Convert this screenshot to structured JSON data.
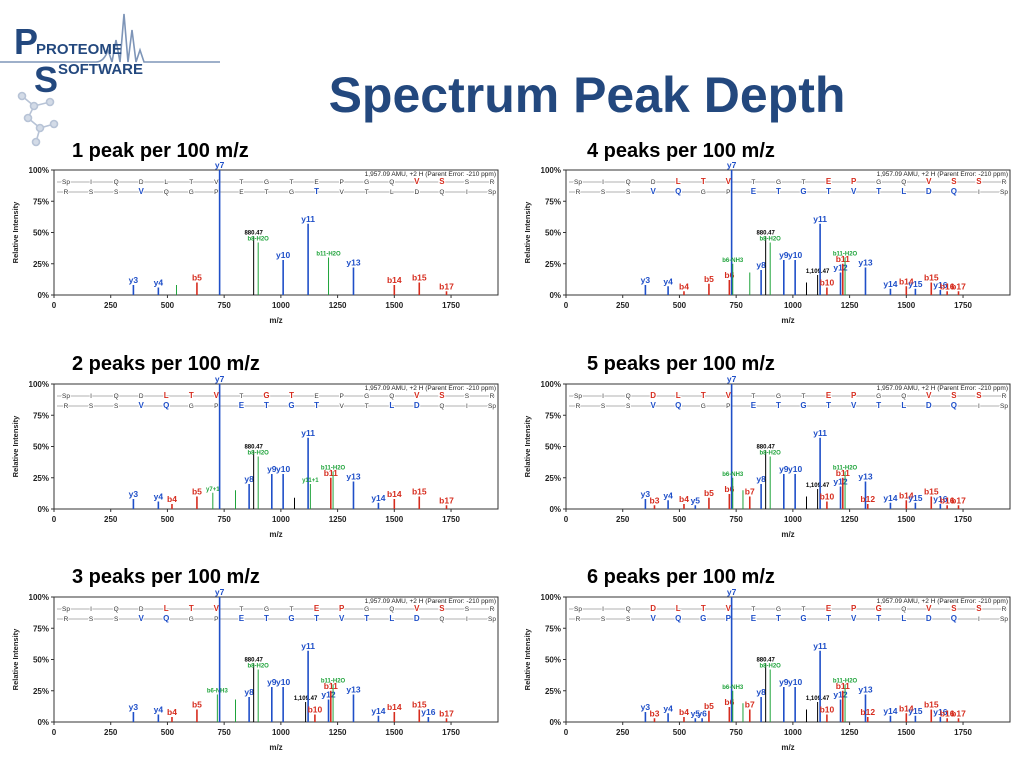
{
  "slide": {
    "title": "Spectrum Peak Depth"
  },
  "logo": {
    "line1": "PROTEOME",
    "line2": "SOFTWARE"
  },
  "colors": {
    "title": "#23487e",
    "y_ion": "#1f4fc8",
    "b_ion": "#d62c1e",
    "neutral": "#1ea33a",
    "noise": "#000000",
    "frame": "#333333"
  },
  "common": {
    "ylabel": "Relative Intensity",
    "xlabel": "m/z",
    "header": "1,957.09 AMU, +2 H (Parent Error: -210 ppm)",
    "y_ticks": [
      "0%",
      "25%",
      "50%",
      "75%",
      "100%"
    ],
    "x_ticks": [
      0,
      250,
      500,
      750,
      1000,
      1250,
      1500,
      1750
    ],
    "xlim": [
      0,
      1957
    ],
    "ylim": [
      0,
      100
    ],
    "seq_top": [
      "Sp",
      "I",
      "Q",
      "D",
      "L",
      "T",
      "V",
      "T",
      "G",
      "T",
      "E",
      "P",
      "G",
      "Q",
      "V",
      "S",
      "S",
      "R"
    ],
    "seq_bottom": [
      "R",
      "S",
      "S",
      "V",
      "Q",
      "G",
      "P",
      "E",
      "T",
      "G",
      "T",
      "V",
      "T",
      "L",
      "D",
      "Q",
      "I",
      "Sp"
    ]
  },
  "chart_data": [
    {
      "type": "bar",
      "title": "1 peak per 100 m/z",
      "top_hl": [
        14,
        15
      ],
      "bottom_hl": [
        3,
        10
      ],
      "peaks": [
        {
          "x": 350,
          "y": 8,
          "label": "y3",
          "c": "y"
        },
        {
          "x": 460,
          "y": 6,
          "label": "y4",
          "c": "y"
        },
        {
          "x": 630,
          "y": 10,
          "label": "b5",
          "c": "b"
        },
        {
          "x": 730,
          "y": 100,
          "label": "y7",
          "c": "y"
        },
        {
          "x": 880,
          "y": 47,
          "label": "880.47",
          "c": "n"
        },
        {
          "x": 900,
          "y": 42,
          "label": "b8-H2O",
          "c": "g"
        },
        {
          "x": 1010,
          "y": 28,
          "label": "y10",
          "c": "y"
        },
        {
          "x": 1120,
          "y": 57,
          "label": "y11",
          "c": "y"
        },
        {
          "x": 1210,
          "y": 30,
          "label": "b11-H2O",
          "c": "g"
        },
        {
          "x": 1320,
          "y": 22,
          "label": "y13",
          "c": "y"
        },
        {
          "x": 1500,
          "y": 8,
          "label": "b14",
          "c": "b"
        },
        {
          "x": 1610,
          "y": 10,
          "label": "b15",
          "c": "b"
        },
        {
          "x": 1730,
          "y": 3,
          "label": "b17",
          "c": "b"
        },
        {
          "x": 540,
          "y": 8,
          "label": "",
          "c": "g"
        }
      ]
    },
    {
      "type": "bar",
      "title": "4 peaks per 100 m/z",
      "top_hl": [
        4,
        5,
        6,
        10,
        11,
        14,
        15,
        16
      ],
      "bottom_hl": [
        3,
        4,
        7,
        8,
        9,
        10,
        11,
        12,
        13,
        14,
        15
      ],
      "peaks": [
        {
          "x": 350,
          "y": 8,
          "label": "y3",
          "c": "y"
        },
        {
          "x": 450,
          "y": 7,
          "label": "y4",
          "c": "y"
        },
        {
          "x": 520,
          "y": 3,
          "label": "b4",
          "c": "b"
        },
        {
          "x": 630,
          "y": 9,
          "label": "b5",
          "c": "b"
        },
        {
          "x": 720,
          "y": 12,
          "label": "b6",
          "c": "b"
        },
        {
          "x": 730,
          "y": 100,
          "label": "y7",
          "c": "y"
        },
        {
          "x": 735,
          "y": 25,
          "label": "b6-NH3",
          "c": "g"
        },
        {
          "x": 860,
          "y": 20,
          "label": "y8",
          "c": "y"
        },
        {
          "x": 880,
          "y": 47,
          "label": "880.47",
          "c": "n"
        },
        {
          "x": 900,
          "y": 42,
          "label": "b8-H2O",
          "c": "g"
        },
        {
          "x": 960,
          "y": 28,
          "label": "y9",
          "c": "y"
        },
        {
          "x": 1010,
          "y": 28,
          "label": "y10",
          "c": "y"
        },
        {
          "x": 1109,
          "y": 16,
          "label": "1,109.47",
          "c": "n"
        },
        {
          "x": 1120,
          "y": 57,
          "label": "y11",
          "c": "y"
        },
        {
          "x": 1150,
          "y": 6,
          "label": "b10",
          "c": "b"
        },
        {
          "x": 1210,
          "y": 18,
          "label": "y12",
          "c": "y"
        },
        {
          "x": 1220,
          "y": 25,
          "label": "b11",
          "c": "b"
        },
        {
          "x": 1230,
          "y": 30,
          "label": "b11-H2O",
          "c": "g"
        },
        {
          "x": 1320,
          "y": 22,
          "label": "y13",
          "c": "y"
        },
        {
          "x": 1430,
          "y": 5,
          "label": "y14",
          "c": "y"
        },
        {
          "x": 1500,
          "y": 7,
          "label": "b14",
          "c": "b"
        },
        {
          "x": 1540,
          "y": 5,
          "label": "y15",
          "c": "y"
        },
        {
          "x": 1610,
          "y": 10,
          "label": "b15",
          "c": "b"
        },
        {
          "x": 1650,
          "y": 4,
          "label": "y16",
          "c": "y"
        },
        {
          "x": 1680,
          "y": 3,
          "label": "b16",
          "c": "b"
        },
        {
          "x": 1730,
          "y": 3,
          "label": "b17",
          "c": "b"
        },
        {
          "x": 810,
          "y": 18,
          "label": "",
          "c": "g"
        },
        {
          "x": 1060,
          "y": 10,
          "label": "",
          "c": "n"
        }
      ]
    },
    {
      "type": "bar",
      "title": "2 peaks per 100 m/z",
      "top_hl": [
        4,
        5,
        6,
        8,
        9,
        14,
        15
      ],
      "bottom_hl": [
        3,
        4,
        7,
        8,
        9,
        10,
        13,
        14
      ],
      "peaks": [
        {
          "x": 350,
          "y": 8,
          "label": "y3",
          "c": "y"
        },
        {
          "x": 460,
          "y": 6,
          "label": "y4",
          "c": "y"
        },
        {
          "x": 520,
          "y": 4,
          "label": "b4",
          "c": "b"
        },
        {
          "x": 630,
          "y": 10,
          "label": "b5",
          "c": "b"
        },
        {
          "x": 700,
          "y": 13,
          "label": "y7+1",
          "c": "g"
        },
        {
          "x": 730,
          "y": 100,
          "label": "y7",
          "c": "y"
        },
        {
          "x": 860,
          "y": 20,
          "label": "y8",
          "c": "y"
        },
        {
          "x": 880,
          "y": 47,
          "label": "880.47",
          "c": "n"
        },
        {
          "x": 900,
          "y": 42,
          "label": "b8-H2O",
          "c": "g"
        },
        {
          "x": 960,
          "y": 28,
          "label": "y9",
          "c": "y"
        },
        {
          "x": 1010,
          "y": 28,
          "label": "y10",
          "c": "y"
        },
        {
          "x": 1120,
          "y": 57,
          "label": "y11",
          "c": "y"
        },
        {
          "x": 1130,
          "y": 20,
          "label": "y11+1",
          "c": "g"
        },
        {
          "x": 1220,
          "y": 25,
          "label": "b11",
          "c": "b"
        },
        {
          "x": 1230,
          "y": 30,
          "label": "b11-H2O",
          "c": "g"
        },
        {
          "x": 1320,
          "y": 22,
          "label": "y13",
          "c": "y"
        },
        {
          "x": 1430,
          "y": 5,
          "label": "y14",
          "c": "y"
        },
        {
          "x": 1500,
          "y": 8,
          "label": "b14",
          "c": "b"
        },
        {
          "x": 1610,
          "y": 10,
          "label": "b15",
          "c": "b"
        },
        {
          "x": 1730,
          "y": 3,
          "label": "b17",
          "c": "b"
        },
        {
          "x": 800,
          "y": 15,
          "label": "",
          "c": "g"
        },
        {
          "x": 1060,
          "y": 9,
          "label": "",
          "c": "n"
        }
      ]
    },
    {
      "type": "bar",
      "title": "5 peaks per 100 m/z",
      "top_hl": [
        3,
        4,
        5,
        6,
        10,
        11,
        14,
        15,
        16
      ],
      "bottom_hl": [
        3,
        4,
        7,
        8,
        9,
        10,
        11,
        12,
        13,
        14,
        15
      ],
      "peaks": [
        {
          "x": 350,
          "y": 8,
          "label": "y3",
          "c": "y"
        },
        {
          "x": 390,
          "y": 3,
          "label": "b3",
          "c": "b"
        },
        {
          "x": 450,
          "y": 7,
          "label": "y4",
          "c": "y"
        },
        {
          "x": 520,
          "y": 4,
          "label": "b4",
          "c": "b"
        },
        {
          "x": 570,
          "y": 3,
          "label": "y5",
          "c": "y"
        },
        {
          "x": 630,
          "y": 9,
          "label": "b5",
          "c": "b"
        },
        {
          "x": 720,
          "y": 12,
          "label": "b6",
          "c": "b"
        },
        {
          "x": 730,
          "y": 100,
          "label": "y7",
          "c": "y"
        },
        {
          "x": 735,
          "y": 25,
          "label": "b6-NH3",
          "c": "g"
        },
        {
          "x": 810,
          "y": 10,
          "label": "b7",
          "c": "b"
        },
        {
          "x": 860,
          "y": 20,
          "label": "y8",
          "c": "y"
        },
        {
          "x": 880,
          "y": 47,
          "label": "880.47",
          "c": "n"
        },
        {
          "x": 900,
          "y": 42,
          "label": "b8-H2O",
          "c": "g"
        },
        {
          "x": 960,
          "y": 28,
          "label": "y9",
          "c": "y"
        },
        {
          "x": 1010,
          "y": 28,
          "label": "y10",
          "c": "y"
        },
        {
          "x": 1109,
          "y": 16,
          "label": "1,109.47",
          "c": "n"
        },
        {
          "x": 1120,
          "y": 57,
          "label": "y11",
          "c": "y"
        },
        {
          "x": 1150,
          "y": 6,
          "label": "b10",
          "c": "b"
        },
        {
          "x": 1210,
          "y": 18,
          "label": "y12",
          "c": "y"
        },
        {
          "x": 1220,
          "y": 25,
          "label": "b11",
          "c": "b"
        },
        {
          "x": 1230,
          "y": 30,
          "label": "b11-H2O",
          "c": "g"
        },
        {
          "x": 1320,
          "y": 22,
          "label": "y13",
          "c": "y"
        },
        {
          "x": 1330,
          "y": 4,
          "label": "b12",
          "c": "b"
        },
        {
          "x": 1430,
          "y": 5,
          "label": "y14",
          "c": "y"
        },
        {
          "x": 1500,
          "y": 7,
          "label": "b14",
          "c": "b"
        },
        {
          "x": 1540,
          "y": 5,
          "label": "y15",
          "c": "y"
        },
        {
          "x": 1610,
          "y": 10,
          "label": "b15",
          "c": "b"
        },
        {
          "x": 1650,
          "y": 4,
          "label": "y16",
          "c": "y"
        },
        {
          "x": 1680,
          "y": 3,
          "label": "b16",
          "c": "b"
        },
        {
          "x": 1730,
          "y": 3,
          "label": "b17",
          "c": "b"
        },
        {
          "x": 780,
          "y": 15,
          "label": "",
          "c": "g"
        },
        {
          "x": 1060,
          "y": 10,
          "label": "",
          "c": "n"
        }
      ]
    },
    {
      "type": "bar",
      "title": "3 peaks per 100 m/z",
      "top_hl": [
        4,
        5,
        6,
        10,
        11,
        14,
        15
      ],
      "bottom_hl": [
        3,
        4,
        7,
        8,
        9,
        10,
        11,
        12,
        13,
        14
      ],
      "peaks": [
        {
          "x": 350,
          "y": 8,
          "label": "y3",
          "c": "y"
        },
        {
          "x": 460,
          "y": 6,
          "label": "y4",
          "c": "y"
        },
        {
          "x": 520,
          "y": 4,
          "label": "b4",
          "c": "b"
        },
        {
          "x": 630,
          "y": 10,
          "label": "b5",
          "c": "b"
        },
        {
          "x": 720,
          "y": 22,
          "label": "b6-NH3",
          "c": "g"
        },
        {
          "x": 730,
          "y": 100,
          "label": "y7",
          "c": "y"
        },
        {
          "x": 860,
          "y": 20,
          "label": "y8",
          "c": "y"
        },
        {
          "x": 880,
          "y": 47,
          "label": "880.47",
          "c": "n"
        },
        {
          "x": 900,
          "y": 42,
          "label": "b8-H2O",
          "c": "g"
        },
        {
          "x": 960,
          "y": 28,
          "label": "y9",
          "c": "y"
        },
        {
          "x": 1010,
          "y": 28,
          "label": "y10",
          "c": "y"
        },
        {
          "x": 1109,
          "y": 16,
          "label": "1,109.47",
          "c": "n"
        },
        {
          "x": 1120,
          "y": 57,
          "label": "y11",
          "c": "y"
        },
        {
          "x": 1150,
          "y": 6,
          "label": "b10",
          "c": "b"
        },
        {
          "x": 1210,
          "y": 18,
          "label": "y12",
          "c": "y"
        },
        {
          "x": 1220,
          "y": 25,
          "label": "b11",
          "c": "b"
        },
        {
          "x": 1230,
          "y": 30,
          "label": "b11-H2O",
          "c": "g"
        },
        {
          "x": 1320,
          "y": 22,
          "label": "y13",
          "c": "y"
        },
        {
          "x": 1430,
          "y": 5,
          "label": "y14",
          "c": "y"
        },
        {
          "x": 1500,
          "y": 8,
          "label": "b14",
          "c": "b"
        },
        {
          "x": 1610,
          "y": 10,
          "label": "b15",
          "c": "b"
        },
        {
          "x": 1650,
          "y": 4,
          "label": "y16",
          "c": "y"
        },
        {
          "x": 1730,
          "y": 3,
          "label": "b17",
          "c": "b"
        },
        {
          "x": 800,
          "y": 18,
          "label": "",
          "c": "g"
        }
      ]
    },
    {
      "type": "bar",
      "title": "6 peaks per 100 m/z",
      "top_hl": [
        3,
        4,
        5,
        6,
        10,
        11,
        12,
        14,
        15,
        16
      ],
      "bottom_hl": [
        3,
        4,
        5,
        6,
        7,
        8,
        9,
        10,
        11,
        12,
        13,
        14,
        15
      ],
      "peaks": [
        {
          "x": 350,
          "y": 8,
          "label": "y3",
          "c": "y"
        },
        {
          "x": 390,
          "y": 3,
          "label": "b3",
          "c": "b"
        },
        {
          "x": 450,
          "y": 7,
          "label": "y4",
          "c": "y"
        },
        {
          "x": 520,
          "y": 4,
          "label": "b4",
          "c": "b"
        },
        {
          "x": 570,
          "y": 3,
          "label": "y5",
          "c": "y"
        },
        {
          "x": 600,
          "y": 3,
          "label": "y6",
          "c": "y"
        },
        {
          "x": 630,
          "y": 9,
          "label": "b5",
          "c": "b"
        },
        {
          "x": 720,
          "y": 12,
          "label": "b6",
          "c": "b"
        },
        {
          "x": 730,
          "y": 100,
          "label": "y7",
          "c": "y"
        },
        {
          "x": 735,
          "y": 25,
          "label": "b6-NH3",
          "c": "g"
        },
        {
          "x": 810,
          "y": 10,
          "label": "b7",
          "c": "b"
        },
        {
          "x": 860,
          "y": 20,
          "label": "y8",
          "c": "y"
        },
        {
          "x": 880,
          "y": 47,
          "label": "880.47",
          "c": "n"
        },
        {
          "x": 900,
          "y": 42,
          "label": "b8-H2O",
          "c": "g"
        },
        {
          "x": 960,
          "y": 28,
          "label": "y9",
          "c": "y"
        },
        {
          "x": 1010,
          "y": 28,
          "label": "y10",
          "c": "y"
        },
        {
          "x": 1109,
          "y": 16,
          "label": "1,109.47",
          "c": "n"
        },
        {
          "x": 1120,
          "y": 57,
          "label": "y11",
          "c": "y"
        },
        {
          "x": 1150,
          "y": 6,
          "label": "b10",
          "c": "b"
        },
        {
          "x": 1210,
          "y": 18,
          "label": "y12",
          "c": "y"
        },
        {
          "x": 1220,
          "y": 25,
          "label": "b11",
          "c": "b"
        },
        {
          "x": 1230,
          "y": 30,
          "label": "b11-H2O",
          "c": "g"
        },
        {
          "x": 1320,
          "y": 22,
          "label": "y13",
          "c": "y"
        },
        {
          "x": 1330,
          "y": 4,
          "label": "b12",
          "c": "b"
        },
        {
          "x": 1430,
          "y": 5,
          "label": "y14",
          "c": "y"
        },
        {
          "x": 1500,
          "y": 7,
          "label": "b14",
          "c": "b"
        },
        {
          "x": 1540,
          "y": 5,
          "label": "y15",
          "c": "y"
        },
        {
          "x": 1610,
          "y": 10,
          "label": "b15",
          "c": "b"
        },
        {
          "x": 1650,
          "y": 4,
          "label": "y16",
          "c": "y"
        },
        {
          "x": 1680,
          "y": 3,
          "label": "b16",
          "c": "b"
        },
        {
          "x": 1730,
          "y": 3,
          "label": "b17",
          "c": "b"
        },
        {
          "x": 780,
          "y": 15,
          "label": "",
          "c": "g"
        },
        {
          "x": 1060,
          "y": 10,
          "label": "",
          "c": "n"
        }
      ]
    }
  ]
}
